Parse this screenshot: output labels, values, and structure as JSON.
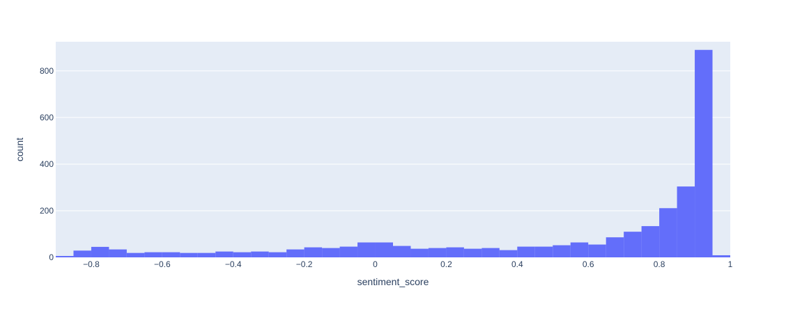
{
  "chart_data": {
    "type": "histogram",
    "title": "",
    "xlabel": "sentiment_score",
    "ylabel": "count",
    "xlim": [
      -0.9,
      1.0
    ],
    "ylim": [
      0,
      925
    ],
    "bin_width": 0.05,
    "x_ticks": [
      -0.8,
      -0.6,
      -0.4,
      -0.2,
      0,
      0.2,
      0.4,
      0.6,
      0.8,
      1
    ],
    "x_tick_labels": [
      "−0.8",
      "−0.6",
      "−0.4",
      "−0.2",
      "0",
      "0.2",
      "0.4",
      "0.6",
      "0.8",
      "1"
    ],
    "y_ticks": [
      0,
      200,
      400,
      600,
      800
    ],
    "y_tick_labels": [
      "0",
      "200",
      "400",
      "600",
      "800"
    ],
    "bins": [
      {
        "x0": -0.9,
        "x1": -0.85,
        "count": 6
      },
      {
        "x0": -0.85,
        "x1": -0.8,
        "count": 29
      },
      {
        "x0": -0.8,
        "x1": -0.75,
        "count": 45
      },
      {
        "x0": -0.75,
        "x1": -0.7,
        "count": 34
      },
      {
        "x0": -0.7,
        "x1": -0.65,
        "count": 19
      },
      {
        "x0": -0.65,
        "x1": -0.6,
        "count": 22
      },
      {
        "x0": -0.6,
        "x1": -0.55,
        "count": 22
      },
      {
        "x0": -0.55,
        "x1": -0.5,
        "count": 19
      },
      {
        "x0": -0.5,
        "x1": -0.45,
        "count": 19
      },
      {
        "x0": -0.45,
        "x1": -0.4,
        "count": 25
      },
      {
        "x0": -0.4,
        "x1": -0.35,
        "count": 22
      },
      {
        "x0": -0.35,
        "x1": -0.3,
        "count": 25
      },
      {
        "x0": -0.3,
        "x1": -0.25,
        "count": 22
      },
      {
        "x0": -0.25,
        "x1": -0.2,
        "count": 34
      },
      {
        "x0": -0.2,
        "x1": -0.15,
        "count": 43
      },
      {
        "x0": -0.15,
        "x1": -0.1,
        "count": 40
      },
      {
        "x0": -0.1,
        "x1": -0.05,
        "count": 46
      },
      {
        "x0": -0.05,
        "x1": 0.0,
        "count": 64
      },
      {
        "x0": 0.0,
        "x1": 0.05,
        "count": 64
      },
      {
        "x0": 0.05,
        "x1": 0.1,
        "count": 49
      },
      {
        "x0": 0.1,
        "x1": 0.15,
        "count": 37
      },
      {
        "x0": 0.15,
        "x1": 0.2,
        "count": 40
      },
      {
        "x0": 0.2,
        "x1": 0.25,
        "count": 43
      },
      {
        "x0": 0.25,
        "x1": 0.3,
        "count": 37
      },
      {
        "x0": 0.3,
        "x1": 0.35,
        "count": 40
      },
      {
        "x0": 0.35,
        "x1": 0.4,
        "count": 31
      },
      {
        "x0": 0.4,
        "x1": 0.45,
        "count": 46
      },
      {
        "x0": 0.45,
        "x1": 0.5,
        "count": 46
      },
      {
        "x0": 0.5,
        "x1": 0.55,
        "count": 52
      },
      {
        "x0": 0.55,
        "x1": 0.6,
        "count": 64
      },
      {
        "x0": 0.6,
        "x1": 0.65,
        "count": 55
      },
      {
        "x0": 0.65,
        "x1": 0.7,
        "count": 86
      },
      {
        "x0": 0.7,
        "x1": 0.75,
        "count": 110
      },
      {
        "x0": 0.75,
        "x1": 0.8,
        "count": 134
      },
      {
        "x0": 0.8,
        "x1": 0.85,
        "count": 211
      },
      {
        "x0": 0.85,
        "x1": 0.9,
        "count": 304
      },
      {
        "x0": 0.9,
        "x1": 0.95,
        "count": 890
      },
      {
        "x0": 0.95,
        "x1": 1.0,
        "count": 9
      }
    ],
    "grid": true,
    "legend": "none",
    "colors": {
      "bar": "#636efa",
      "plot_bg": "#e5ecf6",
      "paper_bg": "#ffffff",
      "grid": "#ffffff",
      "text": "#2a3f5f"
    }
  }
}
